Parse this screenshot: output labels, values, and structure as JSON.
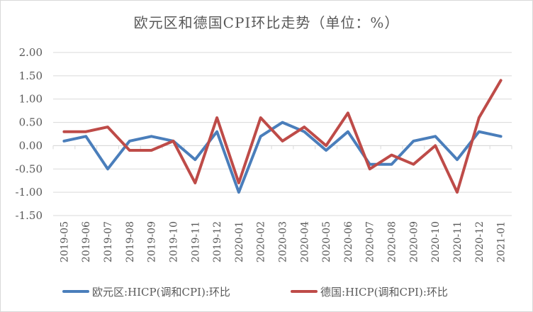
{
  "chart_data": {
    "type": "line",
    "title": "欧元区和德国CPI环比走势（单位：%）",
    "xlabel": "",
    "ylabel": "",
    "ylim": [
      -1.5,
      2.0
    ],
    "yticks": [
      "2.00",
      "1.50",
      "1.00",
      "0.50",
      "0.00",
      "-0.50",
      "-1.00",
      "-1.50"
    ],
    "ytick_values": [
      2.0,
      1.5,
      1.0,
      0.5,
      0.0,
      -0.5,
      -1.0,
      -1.5
    ],
    "grid": true,
    "legend_position": "bottom",
    "categories": [
      "2019-05",
      "2019-06",
      "2019-07",
      "2019-08",
      "2019-09",
      "2019-10",
      "2019-11",
      "2019-12",
      "2020-01",
      "2020-02",
      "2020-03",
      "2020-04",
      "2020-05",
      "2020-06",
      "2020-07",
      "2020-08",
      "2020-09",
      "2020-10",
      "2020-11",
      "2020-12",
      "2021-01"
    ],
    "series": [
      {
        "name": "欧元区:HICP(调和CPI):环比",
        "color": "#4a7ebb",
        "values": [
          0.1,
          0.2,
          -0.5,
          0.1,
          0.2,
          0.1,
          -0.3,
          0.3,
          -1.0,
          0.2,
          0.5,
          0.3,
          -0.1,
          0.3,
          -0.4,
          -0.4,
          0.1,
          0.2,
          -0.3,
          0.3,
          0.2
        ]
      },
      {
        "name": "德国:HICP(调和CPI):环比",
        "color": "#be4b48",
        "values": [
          0.3,
          0.3,
          0.4,
          -0.1,
          -0.1,
          0.1,
          -0.8,
          0.6,
          -0.8,
          0.6,
          0.1,
          0.4,
          0.0,
          0.7,
          -0.5,
          -0.2,
          -0.4,
          0.0,
          -1.0,
          0.6,
          1.4
        ]
      }
    ]
  }
}
